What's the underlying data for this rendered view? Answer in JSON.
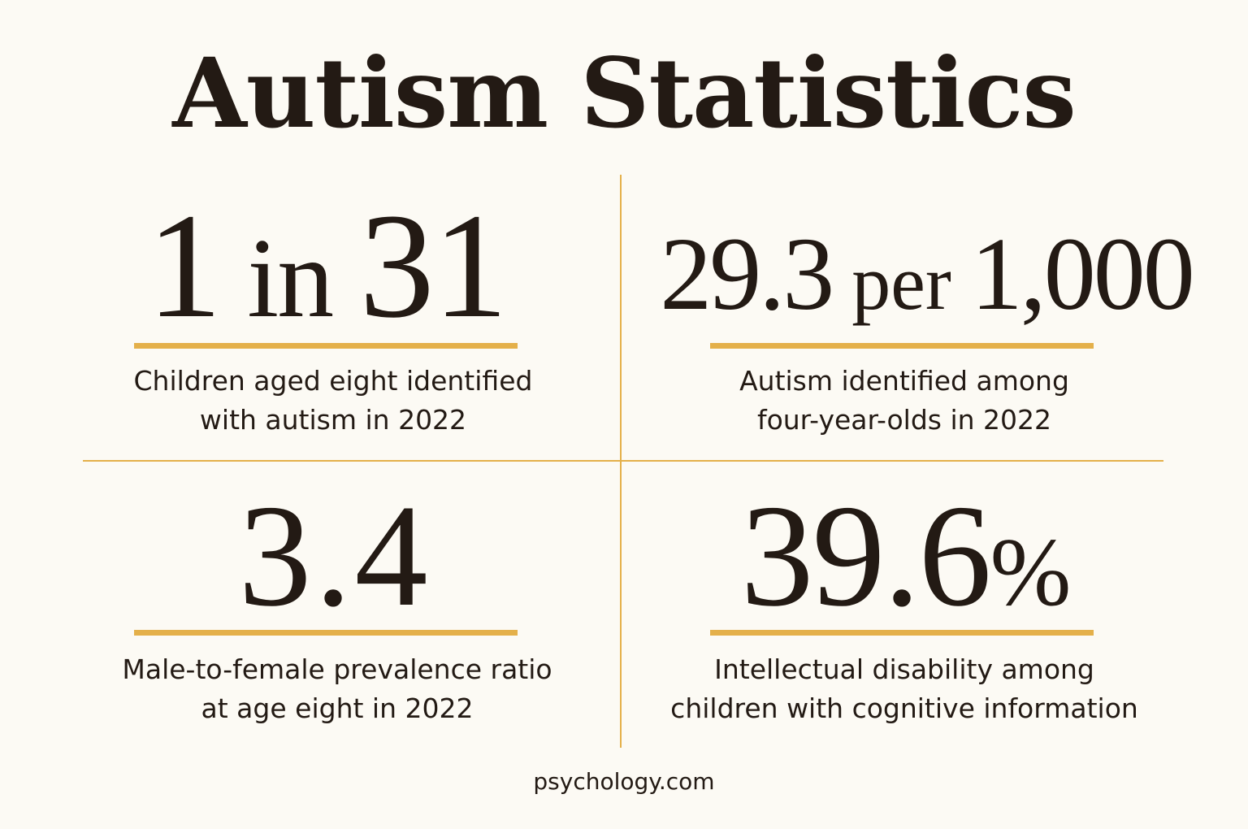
{
  "title": "Autism Statistics",
  "accent_color": "#e4b04a",
  "text_color": "#231a14",
  "background_color": "#fcfaf4",
  "stats": [
    {
      "value_parts": [
        "1",
        " in ",
        "31"
      ],
      "caption_line1": "Children aged eight identified",
      "caption_line2": "with autism in 2022"
    },
    {
      "value_parts": [
        "29.3",
        " per ",
        "1,000"
      ],
      "caption_line1": "Autism identified among",
      "caption_line2": "four-year-olds in 2022"
    },
    {
      "value_parts": [
        "3.4"
      ],
      "caption_line1": "Male-to-female prevalence ratio",
      "caption_line2": "at age eight in 2022"
    },
    {
      "value_parts": [
        "39.6",
        "%"
      ],
      "caption_line1": "Intellectual disability among",
      "caption_line2": "children with cognitive information"
    }
  ],
  "footer": "psychology.com"
}
